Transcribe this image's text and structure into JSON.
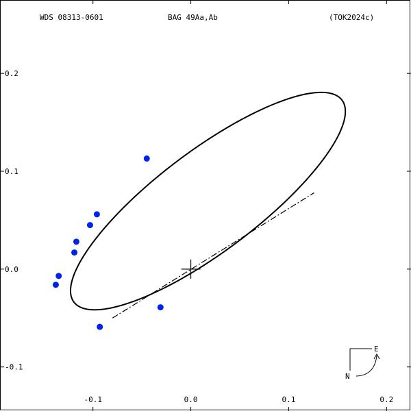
{
  "header": {
    "wds": "WDS 08313-0601",
    "name": "BAG  49Aa,Ab",
    "ref": "(TOK2024c)"
  },
  "compass": {
    "east": "E",
    "north": "N"
  },
  "colors": {
    "points": "#0022ee",
    "orbit": "#000000"
  },
  "chart_data": {
    "type": "scatter",
    "title": "",
    "xlabel": "",
    "ylabel": "",
    "xlim": [
      -0.195,
      0.225
    ],
    "ylim": [
      -0.145,
      0.275
    ],
    "x_ticks": [
      {
        "value": -0.1,
        "label": "-0.1"
      },
      {
        "value": 0.0,
        "label": "0.0"
      },
      {
        "value": 0.1,
        "label": "0.1"
      },
      {
        "value": 0.2,
        "label": "0.2"
      }
    ],
    "y_ticks": [
      {
        "value": 0.2,
        "label": "0.2"
      },
      {
        "value": 0.1,
        "label": "0.1"
      },
      {
        "value": 0.0,
        "label": "0.0"
      },
      {
        "value": -0.1,
        "label": "-0.1"
      }
    ],
    "orbit": {
      "center": [
        0.0175,
        0.0695
      ],
      "semi_major": 0.1715,
      "semi_minor": 0.0515,
      "angle_deg": 37.0
    },
    "line_of_nodes": [
      [
        -0.08,
        -0.05
      ],
      [
        0.126,
        0.078
      ]
    ],
    "primary": [
      0.0,
      0.0
    ],
    "observations": [
      {
        "x": -0.045,
        "y": 0.113
      },
      {
        "x": -0.096,
        "y": 0.056
      },
      {
        "x": -0.103,
        "y": 0.045
      },
      {
        "x": -0.117,
        "y": 0.028
      },
      {
        "x": -0.119,
        "y": 0.017
      },
      {
        "x": -0.135,
        "y": -0.007
      },
      {
        "x": -0.138,
        "y": -0.016
      },
      {
        "x": -0.093,
        "y": -0.059
      },
      {
        "x": -0.031,
        "y": -0.039
      }
    ],
    "grid": false
  }
}
